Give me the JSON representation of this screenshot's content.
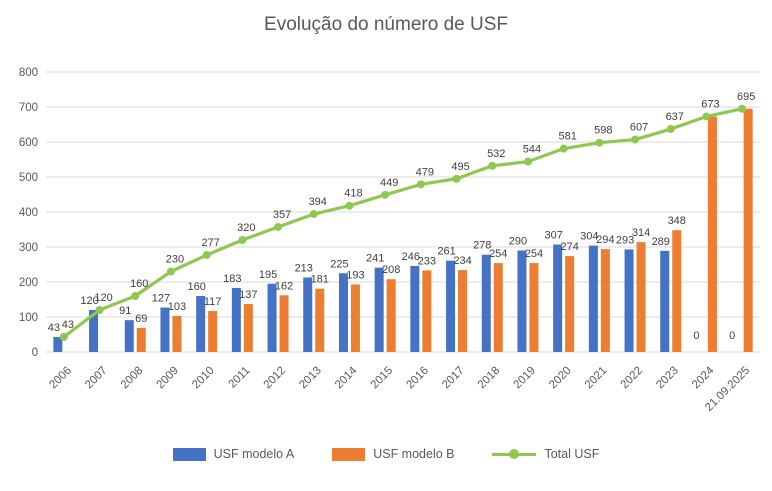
{
  "chart_data": {
    "type": "combo",
    "title": "Evolução do número de USF",
    "categories": [
      "2006",
      "2007",
      "2008",
      "2009",
      "2010",
      "2011",
      "2012",
      "2013",
      "2014",
      "2015",
      "2016",
      "2017",
      "2018",
      "2019",
      "2020",
      "2021",
      "2022",
      "2023",
      "2024",
      "21.09.2025"
    ],
    "series": [
      {
        "name": "USF modelo A",
        "type": "bar",
        "color": "#4472C4",
        "values": [
          43,
          120,
          91,
          127,
          160,
          183,
          195,
          213,
          225,
          241,
          246,
          261,
          278,
          290,
          307,
          304,
          293,
          289,
          0,
          0
        ]
      },
      {
        "name": "USF modelo B",
        "type": "bar",
        "color": "#ED7D31",
        "values": [
          null,
          null,
          69,
          103,
          117,
          137,
          162,
          181,
          193,
          208,
          233,
          234,
          254,
          254,
          274,
          294,
          314,
          348,
          673,
          695
        ],
        "hide_label_at": [
          18,
          19
        ]
      },
      {
        "name": "Total USF",
        "type": "line",
        "color": "#8FC850",
        "values": [
          43,
          120,
          160,
          230,
          277,
          320,
          357,
          394,
          418,
          449,
          479,
          495,
          532,
          544,
          581,
          598,
          607,
          637,
          673,
          695
        ]
      }
    ],
    "ylim": [
      0,
      800
    ],
    "yticks": [
      0,
      100,
      200,
      300,
      400,
      500,
      600,
      700,
      800
    ],
    "grid": true,
    "legend_position": "bottom",
    "colors": {
      "gridline": "#D9D9D9",
      "axis_label": "#595959",
      "data_label": "#404040",
      "title": "#595959"
    }
  }
}
